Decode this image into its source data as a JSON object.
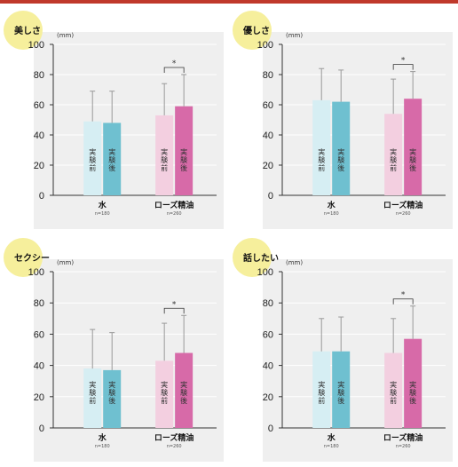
{
  "colors": {
    "badge": "#f6ef9c",
    "plot_bg": "#efefef",
    "grid": "#ffffff",
    "water_before": "#d6eef3",
    "water_after": "#6fc0d0",
    "rose_before": "#f3cfe0",
    "rose_after": "#d76aa8",
    "error_bar": "#999999",
    "top_line": "#c0392b"
  },
  "bar_labels": {
    "before": "実験前",
    "after": "実験後"
  },
  "chart_data": [
    {
      "type": "bar",
      "title": "美しさ",
      "ylabel": "(mm)",
      "ylim": [
        0,
        100
      ],
      "yticks": [
        "0",
        "20",
        "40",
        "60",
        "80",
        "100"
      ],
      "categories": [
        "水",
        "ローズ精油"
      ],
      "n_labels": [
        "n=180",
        "n=260"
      ],
      "series": [
        {
          "name": "実験前",
          "values": [
            49,
            53
          ],
          "error_top": [
            69,
            74
          ]
        },
        {
          "name": "実験後",
          "values": [
            48,
            59
          ],
          "error_top": [
            69,
            80
          ]
        }
      ],
      "significance": [
        {
          "category": "ローズ精油",
          "mark": "*"
        }
      ]
    },
    {
      "type": "bar",
      "title": "優しさ",
      "ylabel": "(mm)",
      "ylim": [
        0,
        100
      ],
      "yticks": [
        "0",
        "20",
        "40",
        "60",
        "80",
        "100"
      ],
      "categories": [
        "水",
        "ローズ精油"
      ],
      "n_labels": [
        "n=180",
        "n=260"
      ],
      "series": [
        {
          "name": "実験前",
          "values": [
            63,
            54
          ],
          "error_top": [
            84,
            77
          ]
        },
        {
          "name": "実験後",
          "values": [
            62,
            64
          ],
          "error_top": [
            83,
            82
          ]
        }
      ],
      "significance": [
        {
          "category": "ローズ精油",
          "mark": "*"
        }
      ]
    },
    {
      "type": "bar",
      "title": "セクシー",
      "ylabel": "(mm)",
      "ylim": [
        0,
        100
      ],
      "yticks": [
        "0",
        "20",
        "40",
        "60",
        "80",
        "100"
      ],
      "categories": [
        "水",
        "ローズ精油"
      ],
      "n_labels": [
        "n=180",
        "n=260"
      ],
      "series": [
        {
          "name": "実験前",
          "values": [
            38,
            43
          ],
          "error_top": [
            63,
            67
          ]
        },
        {
          "name": "実験後",
          "values": [
            37,
            48
          ],
          "error_top": [
            61,
            72
          ]
        }
      ],
      "significance": [
        {
          "category": "ローズ精油",
          "mark": "*"
        }
      ]
    },
    {
      "type": "bar",
      "title": "話したい",
      "ylabel": "(mm)",
      "ylim": [
        0,
        100
      ],
      "yticks": [
        "0",
        "20",
        "40",
        "60",
        "80",
        "100"
      ],
      "categories": [
        "水",
        "ローズ精油"
      ],
      "n_labels": [
        "n=180",
        "n=260"
      ],
      "series": [
        {
          "name": "実験前",
          "values": [
            49,
            48
          ],
          "error_top": [
            70,
            70
          ]
        },
        {
          "name": "実験後",
          "values": [
            49,
            57
          ],
          "error_top": [
            71,
            78
          ]
        }
      ],
      "significance": [
        {
          "category": "ローズ精油",
          "mark": "*"
        }
      ]
    }
  ]
}
